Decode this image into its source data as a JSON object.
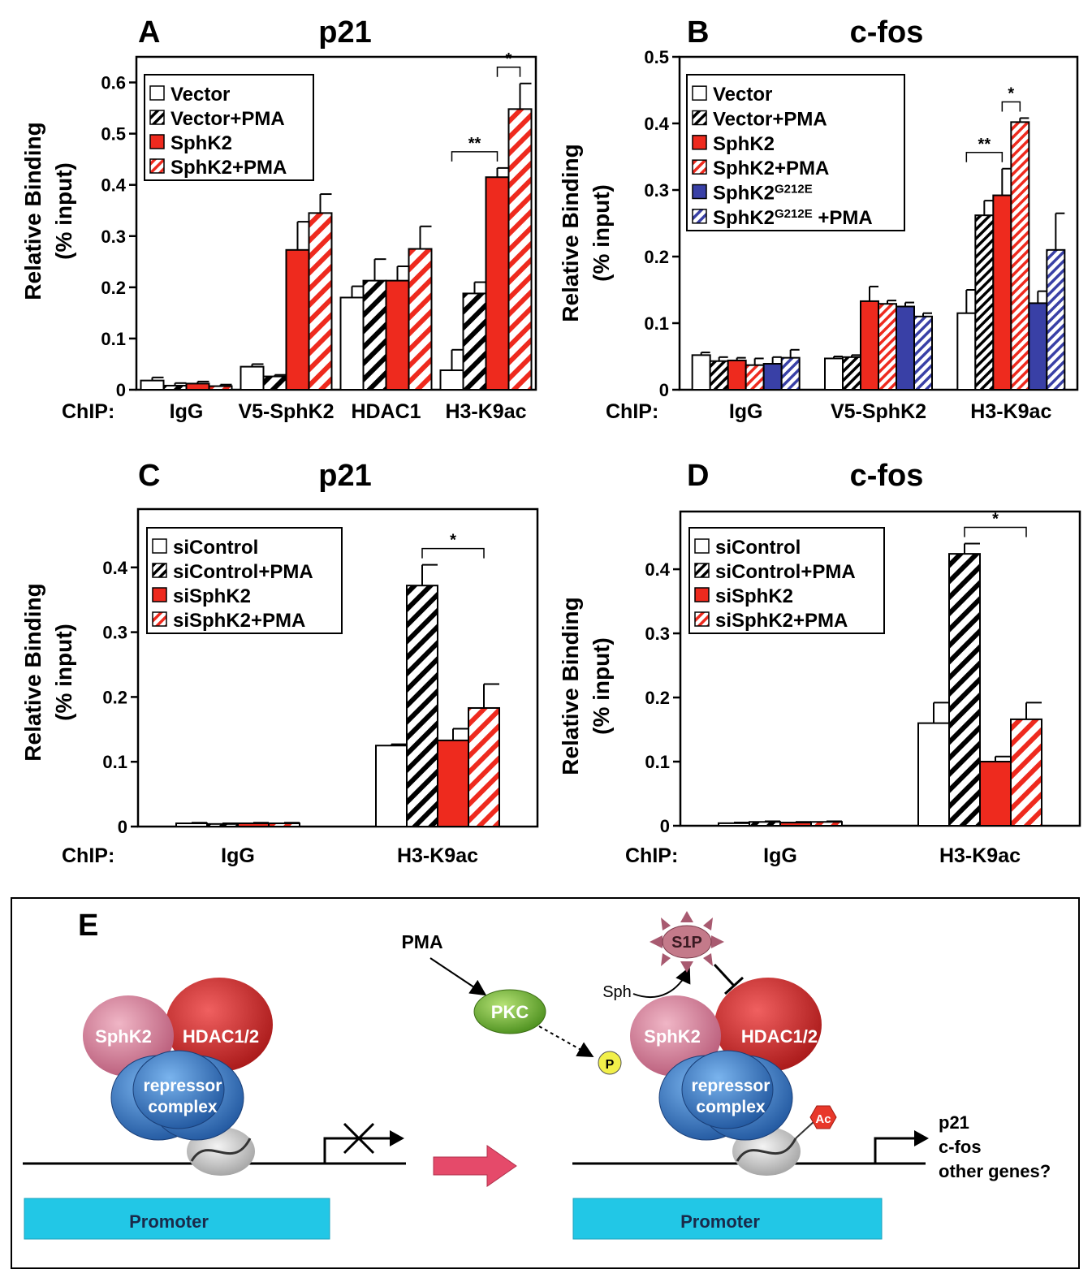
{
  "colors": {
    "red": "#ee2a1e",
    "blue": "#3940a6",
    "black": "#000000",
    "white": "#ffffff",
    "promoter": "#22c7e6",
    "sphk2": "#d6809a",
    "hdac": "#d42a2a",
    "repressor": "#3f86cf",
    "pkc": "#6bb82e",
    "s1p": "#c47a8a",
    "arrow": "#e54a6a"
  },
  "chart_data": [
    {
      "type": "bar",
      "panel": "A",
      "title": "p21",
      "ylabel_line1": "Relative  Binding",
      "ylabel_line2": "(% input)",
      "xlabel_prefix": "ChIP:",
      "ylim": [
        0,
        0.65
      ],
      "yticks": [
        "0",
        "0.1",
        "0.2",
        "0.3",
        "0.4",
        "0.5",
        "0.6"
      ],
      "categories": [
        "IgG",
        "V5-SphK2",
        "HDAC1",
        "H3-K9ac"
      ],
      "legend_position": "top-left",
      "series": [
        {
          "name": "Vector",
          "fill": "white",
          "values": [
            0.018,
            0.045,
            0.18,
            0.038
          ],
          "errors": [
            0.006,
            0.005,
            0.022,
            0.04
          ]
        },
        {
          "name": "Vector+PMA",
          "fill": "black-hatch",
          "values": [
            0.008,
            0.026,
            0.213,
            0.188
          ],
          "errors": [
            0.005,
            0.003,
            0.042,
            0.022
          ]
        },
        {
          "name": "SphK2",
          "fill": "red",
          "values": [
            0.012,
            0.273,
            0.213,
            0.415
          ],
          "errors": [
            0.004,
            0.055,
            0.028,
            0.018
          ]
        },
        {
          "name": "SphK2+PMA",
          "fill": "red-hatch",
          "values": [
            0.007,
            0.345,
            0.275,
            0.548
          ],
          "errors": [
            0.003,
            0.037,
            0.044,
            0.05
          ]
        }
      ],
      "significance": [
        {
          "label": "**",
          "category": "H3-K9ac",
          "from": 0,
          "to": 2
        },
        {
          "label": "*",
          "category": "H3-K9ac",
          "from": 2,
          "to": 3
        }
      ]
    },
    {
      "type": "bar",
      "panel": "B",
      "title": "c-fos",
      "ylabel_line1": "Relative  Binding",
      "ylabel_line2": "(% input)",
      "xlabel_prefix": "ChIP:",
      "ylim": [
        0,
        0.5
      ],
      "yticks": [
        "0",
        "0.1",
        "0.2",
        "0.3",
        "0.4",
        "0.5"
      ],
      "categories": [
        "IgG",
        "V5-SphK2",
        "H3-K9ac"
      ],
      "legend_position": "top-left",
      "series": [
        {
          "name": "Vector",
          "fill": "white",
          "values": [
            0.052,
            0.047,
            0.115
          ],
          "errors": [
            0.004,
            0.003,
            0.035
          ]
        },
        {
          "name": "Vector+PMA",
          "fill": "black-hatch",
          "values": [
            0.043,
            0.049,
            0.262
          ],
          "errors": [
            0.006,
            0.003,
            0.022
          ]
        },
        {
          "name": "SphK2",
          "fill": "red",
          "values": [
            0.044,
            0.133,
            0.292
          ],
          "errors": [
            0.004,
            0.022,
            0.04
          ]
        },
        {
          "name": "SphK2+PMA",
          "fill": "red-hatch",
          "values": [
            0.037,
            0.129,
            0.402
          ],
          "errors": [
            0.01,
            0.005,
            0.006
          ]
        },
        {
          "name": "SphK2",
          "superscript": "G212E",
          "fill": "blue",
          "values": [
            0.039,
            0.125,
            0.13
          ],
          "errors": [
            0.01,
            0.006,
            0.018
          ]
        },
        {
          "name": "SphK2",
          "superscript": "G212E",
          "suffix": " +PMA",
          "fill": "blue-hatch",
          "values": [
            0.048,
            0.11,
            0.21
          ],
          "errors": [
            0.012,
            0.005,
            0.055
          ]
        }
      ],
      "significance": [
        {
          "label": "**",
          "category": "H3-K9ac",
          "from": 0,
          "to": 2
        },
        {
          "label": "*",
          "category": "H3-K9ac",
          "from": 2,
          "to": 3
        }
      ]
    },
    {
      "type": "bar",
      "panel": "C",
      "title": "p21",
      "ylabel_line1": "Relative  Binding",
      "ylabel_line2": "(% input)",
      "xlabel_prefix": "ChIP:",
      "ylim": [
        0,
        0.49
      ],
      "yticks": [
        "0",
        "0.1",
        "0.2",
        "0.3",
        "0.4"
      ],
      "categories": [
        "IgG",
        "H3-K9ac"
      ],
      "legend_position": "top-left",
      "series": [
        {
          "name": "siControl",
          "fill": "white",
          "values": [
            0.005,
            0.125
          ],
          "errors": [
            0.001,
            0.002
          ]
        },
        {
          "name": "siControl+PMA",
          "fill": "black-hatch",
          "values": [
            0.004,
            0.372
          ],
          "errors": [
            0.001,
            0.032
          ]
        },
        {
          "name": "siSphK2",
          "fill": "red",
          "values": [
            0.005,
            0.133
          ],
          "errors": [
            0.001,
            0.018
          ]
        },
        {
          "name": "siSphK2+PMA",
          "fill": "red-hatch",
          "values": [
            0.005,
            0.183
          ],
          "errors": [
            0.001,
            0.037
          ]
        }
      ],
      "significance": [
        {
          "label": "*",
          "category": "H3-K9ac",
          "from": 1,
          "to": 3
        }
      ]
    },
    {
      "type": "bar",
      "panel": "D",
      "title": "c-fos",
      "ylabel_line1": "Relative  Binding",
      "ylabel_line2": "(% input)",
      "xlabel_prefix": "ChIP:",
      "ylim": [
        0,
        0.49
      ],
      "yticks": [
        "0",
        "0.1",
        "0.2",
        "0.3",
        "0.4"
      ],
      "categories": [
        "IgG",
        "H3-K9ac"
      ],
      "legend_position": "top-left",
      "series": [
        {
          "name": "siControl",
          "fill": "white",
          "values": [
            0.004,
            0.16
          ],
          "errors": [
            0.001,
            0.032
          ]
        },
        {
          "name": "siControl+PMA",
          "fill": "black-hatch",
          "values": [
            0.006,
            0.424
          ],
          "errors": [
            0.001,
            0.016
          ]
        },
        {
          "name": "siSphK2",
          "fill": "red",
          "values": [
            0.005,
            0.1
          ],
          "errors": [
            0.001,
            0.008
          ]
        },
        {
          "name": "siSphK2+PMA",
          "fill": "red-hatch",
          "values": [
            0.006,
            0.166
          ],
          "errors": [
            0.001,
            0.026
          ]
        }
      ],
      "significance": [
        {
          "label": "*",
          "category": "H3-K9ac",
          "from": 1,
          "to": 3
        }
      ]
    }
  ],
  "diagram": {
    "panel": "E",
    "left_sphk2": "SphK2",
    "left_hdac": "HDAC1/2",
    "left_repressor_1": "repressor",
    "left_repressor_2": "complex",
    "left_promoter": "Promoter",
    "pma": "PMA",
    "pkc": "PKC",
    "p": "P",
    "sph": "Sph",
    "s1p": "S1P",
    "right_sphk2": "SphK2",
    "right_hdac": "HDAC1/2",
    "right_repressor_1": "repressor",
    "right_repressor_2": "complex",
    "ac": "Ac",
    "gene_1": "p21",
    "gene_2": "c-fos",
    "gene_3": "other genes?",
    "right_promoter": "Promoter"
  }
}
